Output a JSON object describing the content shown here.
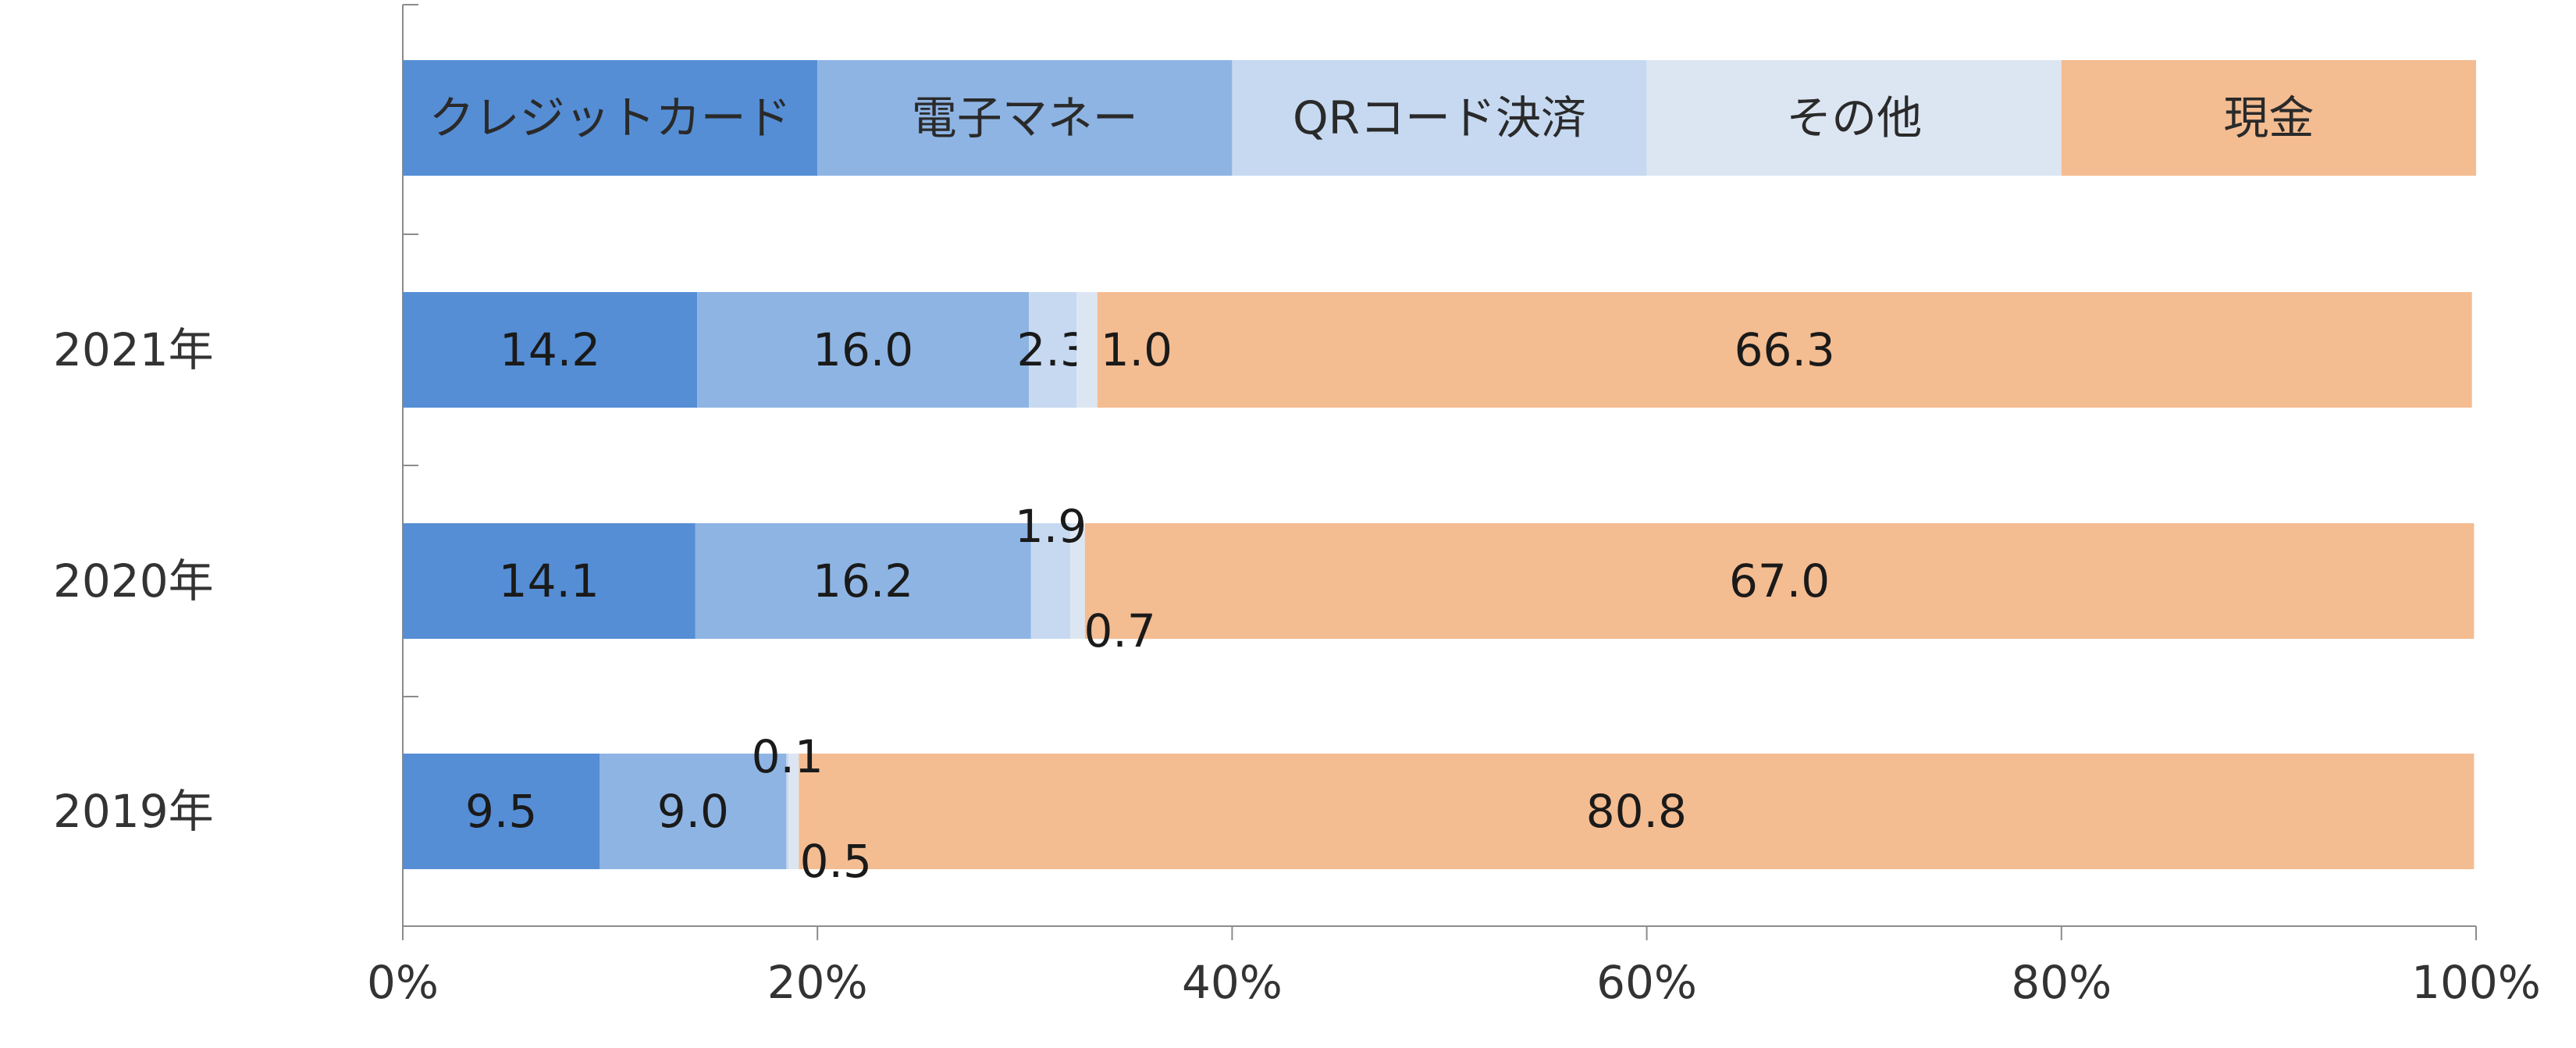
{
  "chart_data": {
    "type": "bar",
    "orientation": "horizontal",
    "stacked": true,
    "normalized": true,
    "categories": [
      "2021年",
      "2020年",
      "2019年"
    ],
    "series": [
      {
        "name": "クレジットカード",
        "color": "#558ED5",
        "values": [
          14.2,
          14.1,
          9.5
        ]
      },
      {
        "name": "電子マネー",
        "color": "#8EB4E3",
        "values": [
          16.0,
          16.2,
          9.0
        ]
      },
      {
        "name": "QRコード決済",
        "color": "#C6D9F1",
        "values": [
          2.3,
          1.9,
          0.1
        ]
      },
      {
        "name": "その他",
        "color": "#DCE6F2",
        "values": [
          1.0,
          0.7,
          0.5
        ]
      },
      {
        "name": "現金",
        "color": "#F4BC91",
        "values": [
          66.3,
          67.0,
          80.8
        ]
      }
    ],
    "x_ticks": [
      "0%",
      "20%",
      "40%",
      "60%",
      "80%",
      "100%"
    ],
    "xlim": [
      0,
      100
    ],
    "grid": false,
    "legend": {
      "placement": "top",
      "style": "color-bar"
    },
    "title": "",
    "xlabel": "",
    "ylabel": ""
  }
}
